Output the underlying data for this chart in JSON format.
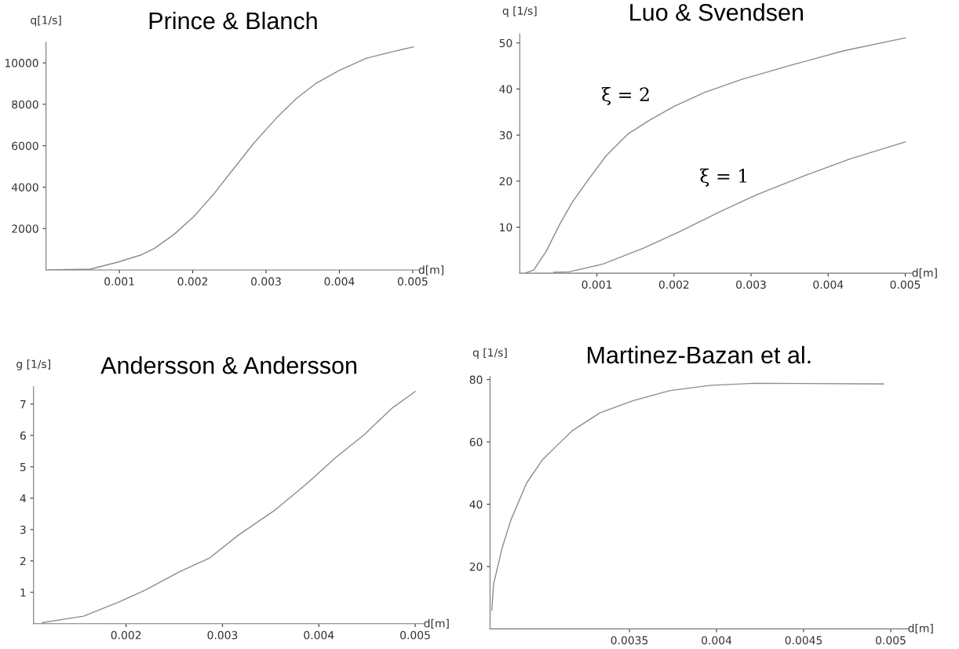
{
  "chart_data": [
    {
      "type": "line",
      "title": "Prince & Blanch",
      "xlabel": "d[m]",
      "ylabel": "q[1/s]",
      "xlim": [
        0,
        0.0051
      ],
      "ylim": [
        0,
        11000
      ],
      "xticks": [
        0.001,
        0.002,
        0.003,
        0.004,
        0.005
      ],
      "yticks": [
        2000,
        4000,
        6000,
        8000,
        10000
      ],
      "grid": false,
      "line_style": "solid",
      "series": [
        {
          "color": "#8c8c8c",
          "x": [
            4e-05,
            0.0006,
            0.00098,
            0.00129,
            0.00148,
            0.00175,
            0.00202,
            0.00229,
            0.00256,
            0.00283,
            0.00314,
            0.00341,
            0.00368,
            0.00399,
            0.00437,
            0.00476,
            0.00501
          ],
          "values": [
            0,
            40,
            380,
            720,
            1050,
            1730,
            2600,
            3680,
            4900,
            6110,
            7330,
            8270,
            9010,
            9620,
            10230,
            10570,
            10770
          ]
        }
      ]
    },
    {
      "type": "line",
      "title": "Luo & Svendsen",
      "xlabel": "d[m]",
      "ylabel": "q [1/s]",
      "xlim": [
        0,
        0.0051
      ],
      "ylim": [
        0,
        52
      ],
      "xticks": [
        0.001,
        0.002,
        0.003,
        0.004,
        0.005
      ],
      "yticks": [
        10,
        20,
        30,
        40,
        50
      ],
      "grid": false,
      "line_style": "solid",
      "annotations": [
        "ξ = 2",
        "ξ = 1"
      ],
      "series": [
        {
          "color": "#8c8c8c",
          "x": [
            8e-05,
            0.00018,
            0.00034,
            0.00052,
            0.00068,
            0.00088,
            0.00112,
            0.0014,
            0.00168,
            0.002,
            0.0024,
            0.00288,
            0.00348,
            0.0042,
            0.005
          ],
          "values": [
            0.1,
            0.7,
            4.7,
            10.7,
            15.4,
            20.1,
            25.5,
            30.2,
            33.2,
            36.2,
            39.3,
            42.1,
            45.0,
            48.3,
            51.1
          ]
        },
        {
          "color": "#8c8c8c",
          "x": [
            0.00044,
            0.00064,
            0.00108,
            0.0016,
            0.00208,
            0.0026,
            0.00308,
            0.00368,
            0.00428,
            0.005
          ],
          "values": [
            0.2,
            0.3,
            2.0,
            5.4,
            9.1,
            13.4,
            17.1,
            21.1,
            24.8,
            28.5
          ]
        }
      ]
    },
    {
      "type": "line",
      "title": "Andersson & Andersson",
      "xlabel": "d[m]",
      "ylabel": "g [1/s]",
      "xlim": [
        0.00104,
        0.0051
      ],
      "ylim": [
        0,
        7.55
      ],
      "xticks": [
        0.002,
        0.003,
        0.004,
        0.005
      ],
      "yticks": [
        1,
        2,
        3,
        4,
        5,
        6,
        7
      ],
      "grid": false,
      "line_style": "solid",
      "series": [
        {
          "color": "#8c8c8c",
          "x": [
            0.00113,
            0.00156,
            0.00191,
            0.0022,
            0.00255,
            0.00287,
            0.00316,
            0.00354,
            0.00389,
            0.00418,
            0.00447,
            0.00476,
            0.005
          ],
          "values": [
            0.03,
            0.24,
            0.67,
            1.07,
            1.65,
            2.1,
            2.81,
            3.61,
            4.5,
            5.31,
            6.02,
            6.87,
            7.4
          ]
        }
      ]
    },
    {
      "type": "line",
      "title": "Martinez-Bazan et al.",
      "xlabel": "d[m]",
      "ylabel": "q [1/s]",
      "xlim": [
        0.0027,
        0.0051
      ],
      "ylim": [
        0,
        81
      ],
      "xticks": [
        0.0035,
        0.004,
        0.0045,
        0.005
      ],
      "yticks": [
        20,
        40,
        60,
        80
      ],
      "grid": false,
      "line_style": "solid",
      "series": [
        {
          "color": "#8c8c8c",
          "x": [
            0.00271,
            0.00272,
            0.00277,
            0.00282,
            0.00291,
            0.003,
            0.00308,
            0.00317,
            0.00333,
            0.00352,
            0.00373,
            0.00396,
            0.00422,
            0.00496
          ],
          "values": [
            5.9,
            14.3,
            26.1,
            35.0,
            46.8,
            54.2,
            58.6,
            63.5,
            69.3,
            73.2,
            76.4,
            78.1,
            78.8,
            78.6
          ]
        }
      ]
    }
  ]
}
